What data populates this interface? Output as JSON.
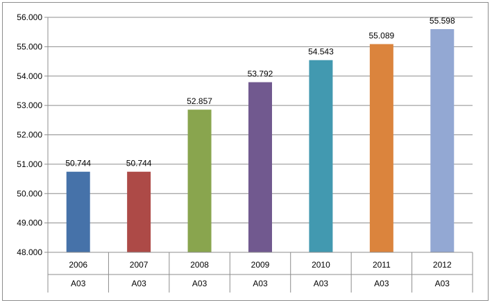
{
  "chart_data": {
    "type": "bar",
    "categories": [
      "2006",
      "2007",
      "2008",
      "2009",
      "2010",
      "2011",
      "2012"
    ],
    "subcategories": [
      "A03",
      "A03",
      "A03",
      "A03",
      "A03",
      "A03",
      "A03"
    ],
    "values": [
      50.744,
      50.744,
      52.857,
      53.792,
      54.543,
      55.089,
      55.598
    ],
    "value_labels": [
      "50.744",
      "50.744",
      "52.857",
      "53.792",
      "54.543",
      "55.089",
      "55.598"
    ],
    "colors": [
      "#4672a9",
      "#ad4a47",
      "#89a54e",
      "#71598f",
      "#4299b0",
      "#db843d",
      "#93a8d3"
    ],
    "ylim": [
      48,
      56
    ],
    "yticks": [
      48,
      49,
      50,
      51,
      52,
      53,
      54,
      55,
      56
    ],
    "ytick_labels": [
      "48.000",
      "49.000",
      "50.000",
      "51.000",
      "52.000",
      "53.000",
      "54.000",
      "55.000",
      "56.000"
    ],
    "grid": true,
    "legend": "none",
    "title": "",
    "xlabel": "",
    "ylabel": ""
  }
}
